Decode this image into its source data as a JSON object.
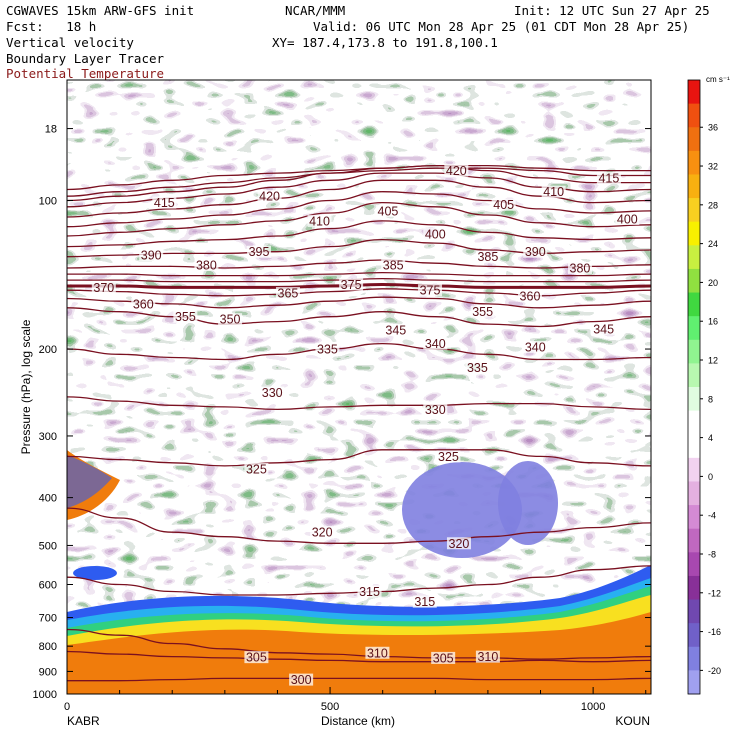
{
  "header": {
    "model": "CGWAVES 15km ARW-GFS init",
    "org": "NCAR/MMM",
    "init": "Init: 12 UTC Sun 27 Apr 25",
    "fcst": "Fcst:   18 h",
    "valid": "Valid: 06 UTC Mon 28 Apr 25 (01 CDT Mon 28 Apr 25)",
    "field1": "Vertical velocity",
    "field2": "Boundary Layer Tracer",
    "field3": "Potential Temperature",
    "xy": "XY= 187.4,173.8 to 191.8,100.1",
    "field3_color": "#8b1a1a"
  },
  "chart_data": {
    "type": "heatmap",
    "xlabel": "Distance (km)",
    "ylabel": "Pressure (hPa), log scale",
    "xlim": [
      0,
      1110
    ],
    "ylim": [
      1000,
      57
    ],
    "y_scale": "log",
    "x_ticks": [
      0,
      500,
      1000
    ],
    "x_ends": [
      "KABR",
      "KOUN"
    ],
    "y_ticks": [
      {
        "p": 1000,
        "label": "1000"
      },
      {
        "p": 900,
        "label": "900"
      },
      {
        "p": 800,
        "label": "800"
      },
      {
        "p": 700,
        "label": "700"
      },
      {
        "p": 600,
        "label": "600"
      },
      {
        "p": 500,
        "label": "500"
      },
      {
        "p": 400,
        "label": "400"
      },
      {
        "p": 300,
        "label": "300"
      },
      {
        "p": 200,
        "label": "200"
      },
      {
        "p": 100,
        "label": "100"
      },
      {
        "p": 71.5,
        "label": "18"
      }
    ],
    "colorbar": {
      "unit": "cm s⁻¹",
      "labels": [
        "36",
        "32",
        "28",
        "24",
        "20",
        "16",
        "12",
        "8",
        "4",
        "0",
        "-4",
        "-8",
        "-12",
        "-16",
        "-20"
      ],
      "colors": [
        "#e81410",
        "#f05010",
        "#f07010",
        "#f89010",
        "#f8b010",
        "#f8d020",
        "#f8f000",
        "#c8f040",
        "#90e040",
        "#40d840",
        "#60f070",
        "#90f490",
        "#b8f8b0",
        "#e0fce0",
        "#ffffff",
        "#ffffff",
        "#f2d2f0",
        "#e4b0e0",
        "#d48ad4",
        "#c068c0",
        "#a848b0",
        "#883098",
        "#7048b0",
        "#7060c8",
        "#8080e0",
        "#a0a0f0"
      ]
    },
    "isentropes": [
      {
        "theta": 300,
        "p": [
          940,
          940,
          935,
          930,
          930,
          930,
          930,
          930,
          935,
          935,
          935,
          930
        ]
      },
      {
        "theta": 305,
        "p": [
          820,
          830,
          840,
          845,
          850,
          855,
          860,
          860,
          860,
          855,
          860,
          855
        ]
      },
      {
        "theta": 310,
        "p": [
          740,
          760,
          790,
          810,
          825,
          830,
          840,
          845,
          845,
          850,
          845,
          840
        ]
      },
      {
        "theta": 315,
        "p": [
          580,
          600,
          620,
          630,
          630,
          625,
          620,
          610,
          600,
          580,
          560,
          550
        ]
      },
      {
        "theta": 320,
        "p": [
          420,
          440,
          470,
          480,
          490,
          495,
          495,
          490,
          480,
          470,
          460,
          450
        ]
      },
      {
        "theta": 325,
        "p": [
          330,
          335,
          340,
          345,
          340,
          335,
          320,
          320,
          320,
          330,
          340,
          345
        ]
      },
      {
        "theta": 330,
        "p": [
          250,
          255,
          260,
          262,
          265,
          262,
          260,
          260,
          258,
          258,
          262,
          265
        ]
      },
      {
        "theta": 335,
        "p": [
          200,
          205,
          208,
          210,
          205,
          200,
          195,
          200,
          205,
          210,
          210,
          208
        ]
      },
      {
        "theta": 345,
        "p": [
          165,
          168,
          172,
          178,
          176,
          172,
          168,
          172,
          178,
          180,
          176,
          172
        ]
      },
      {
        "theta": 350,
        "p": [
          158,
          160,
          162,
          165,
          163,
          160,
          157,
          158,
          162,
          165,
          163,
          160
        ]
      },
      {
        "theta": 355,
        "p": [
          152,
          153,
          155,
          156,
          155,
          153,
          151,
          152,
          154,
          156,
          154,
          152
        ]
      },
      {
        "theta": 360,
        "p": [
          149,
          149,
          150,
          150,
          150,
          149,
          148,
          149,
          150,
          150,
          150,
          149
        ]
      },
      {
        "theta": 365,
        "p": [
          145,
          145,
          146,
          146,
          146,
          145,
          144,
          145,
          146,
          146,
          146,
          145
        ]
      },
      {
        "theta": 370,
        "p": [
          141,
          141,
          142,
          142,
          142,
          141,
          140,
          141,
          142,
          142,
          142,
          141
        ]
      },
      {
        "theta": 375,
        "p": [
          137,
          136,
          136,
          137,
          136,
          134,
          132,
          134,
          136,
          137,
          136,
          135
        ]
      },
      {
        "theta": 380,
        "p": [
          130,
          129,
          128,
          128,
          127,
          124,
          120,
          122,
          126,
          128,
          127,
          126
        ]
      },
      {
        "theta": 385,
        "p": [
          124,
          123,
          121,
          120,
          118,
          114,
          110,
          112,
          116,
          119,
          120,
          119
        ]
      },
      {
        "theta": 390,
        "p": [
          118,
          116,
          114,
          112,
          110,
          106,
          101,
          103,
          107,
          111,
          113,
          112
        ]
      },
      {
        "theta": 395,
        "p": [
          113,
          111,
          109,
          107,
          104,
          100,
          96,
          97,
          100,
          104,
          106,
          105
        ]
      },
      {
        "theta": 400,
        "p": [
          108,
          106,
          104,
          102,
          99,
          95,
          91,
          91,
          94,
          98,
          101,
          100
        ]
      },
      {
        "theta": 405,
        "p": [
          103,
          101,
          99,
          97,
          94,
          91,
          88,
          88,
          90,
          94,
          96,
          95
        ]
      },
      {
        "theta": 410,
        "p": [
          100,
          98,
          96,
          94,
          91,
          88,
          86,
          85,
          87,
          90,
          92,
          92
        ]
      },
      {
        "theta": 415,
        "p": [
          98,
          96,
          94,
          92,
          90,
          88,
          87,
          86,
          86,
          87,
          89,
          89
        ]
      },
      {
        "theta": 420,
        "p": [
          95,
          93,
          91,
          89,
          88,
          87,
          86,
          85,
          85,
          86,
          87,
          87
        ]
      }
    ],
    "isentrope_x": [
      0,
      100,
      200,
      300,
      400,
      500,
      600,
      700,
      800,
      900,
      1000,
      1110
    ],
    "contour_labels": [
      {
        "text": "415",
        "x": 185,
        "p": 101
      },
      {
        "text": "420",
        "x": 385,
        "p": 98
      },
      {
        "text": "410",
        "x": 480,
        "p": 110
      },
      {
        "text": "405",
        "x": 610,
        "p": 105
      },
      {
        "text": "420",
        "x": 740,
        "p": 87
      },
      {
        "text": "405",
        "x": 830,
        "p": 102
      },
      {
        "text": "410",
        "x": 925,
        "p": 96
      },
      {
        "text": "415",
        "x": 1030,
        "p": 90
      },
      {
        "text": "400",
        "x": 1065,
        "p": 109
      },
      {
        "text": "390",
        "x": 160,
        "p": 129
      },
      {
        "text": "380",
        "x": 265,
        "p": 135
      },
      {
        "text": "395",
        "x": 365,
        "p": 127
      },
      {
        "text": "400",
        "x": 700,
        "p": 117
      },
      {
        "text": "385",
        "x": 620,
        "p": 135
      },
      {
        "text": "385",
        "x": 800,
        "p": 130
      },
      {
        "text": "390",
        "x": 890,
        "p": 127
      },
      {
        "text": "380",
        "x": 975,
        "p": 137
      },
      {
        "text": "370",
        "x": 70,
        "p": 150
      },
      {
        "text": "360",
        "x": 145,
        "p": 162
      },
      {
        "text": "355",
        "x": 225,
        "p": 172
      },
      {
        "text": "350",
        "x": 310,
        "p": 174
      },
      {
        "text": "365",
        "x": 420,
        "p": 154
      },
      {
        "text": "375",
        "x": 540,
        "p": 148
      },
      {
        "text": "375",
        "x": 690,
        "p": 152
      },
      {
        "text": "355",
        "x": 790,
        "p": 168
      },
      {
        "text": "360",
        "x": 880,
        "p": 156
      },
      {
        "text": "345",
        "x": 1020,
        "p": 182
      },
      {
        "text": "345",
        "x": 625,
        "p": 183
      },
      {
        "text": "340",
        "x": 700,
        "p": 195
      },
      {
        "text": "335",
        "x": 495,
        "p": 200
      },
      {
        "text": "335",
        "x": 780,
        "p": 218
      },
      {
        "text": "340",
        "x": 890,
        "p": 198
      },
      {
        "text": "330",
        "x": 390,
        "p": 245
      },
      {
        "text": "330",
        "x": 700,
        "p": 265
      },
      {
        "text": "325",
        "x": 360,
        "p": 350
      },
      {
        "text": "325",
        "x": 725,
        "p": 330
      },
      {
        "text": "320",
        "x": 485,
        "p": 470
      },
      {
        "text": "320",
        "x": 745,
        "p": 495
      },
      {
        "text": "315",
        "x": 575,
        "p": 620
      },
      {
        "text": "315",
        "x": 680,
        "p": 650
      },
      {
        "text": "305",
        "x": 360,
        "p": 842
      },
      {
        "text": "310",
        "x": 590,
        "p": 825
      },
      {
        "text": "305",
        "x": 715,
        "p": 845
      },
      {
        "text": "310",
        "x": 800,
        "p": 840
      },
      {
        "text": "300",
        "x": 445,
        "p": 935
      }
    ]
  }
}
